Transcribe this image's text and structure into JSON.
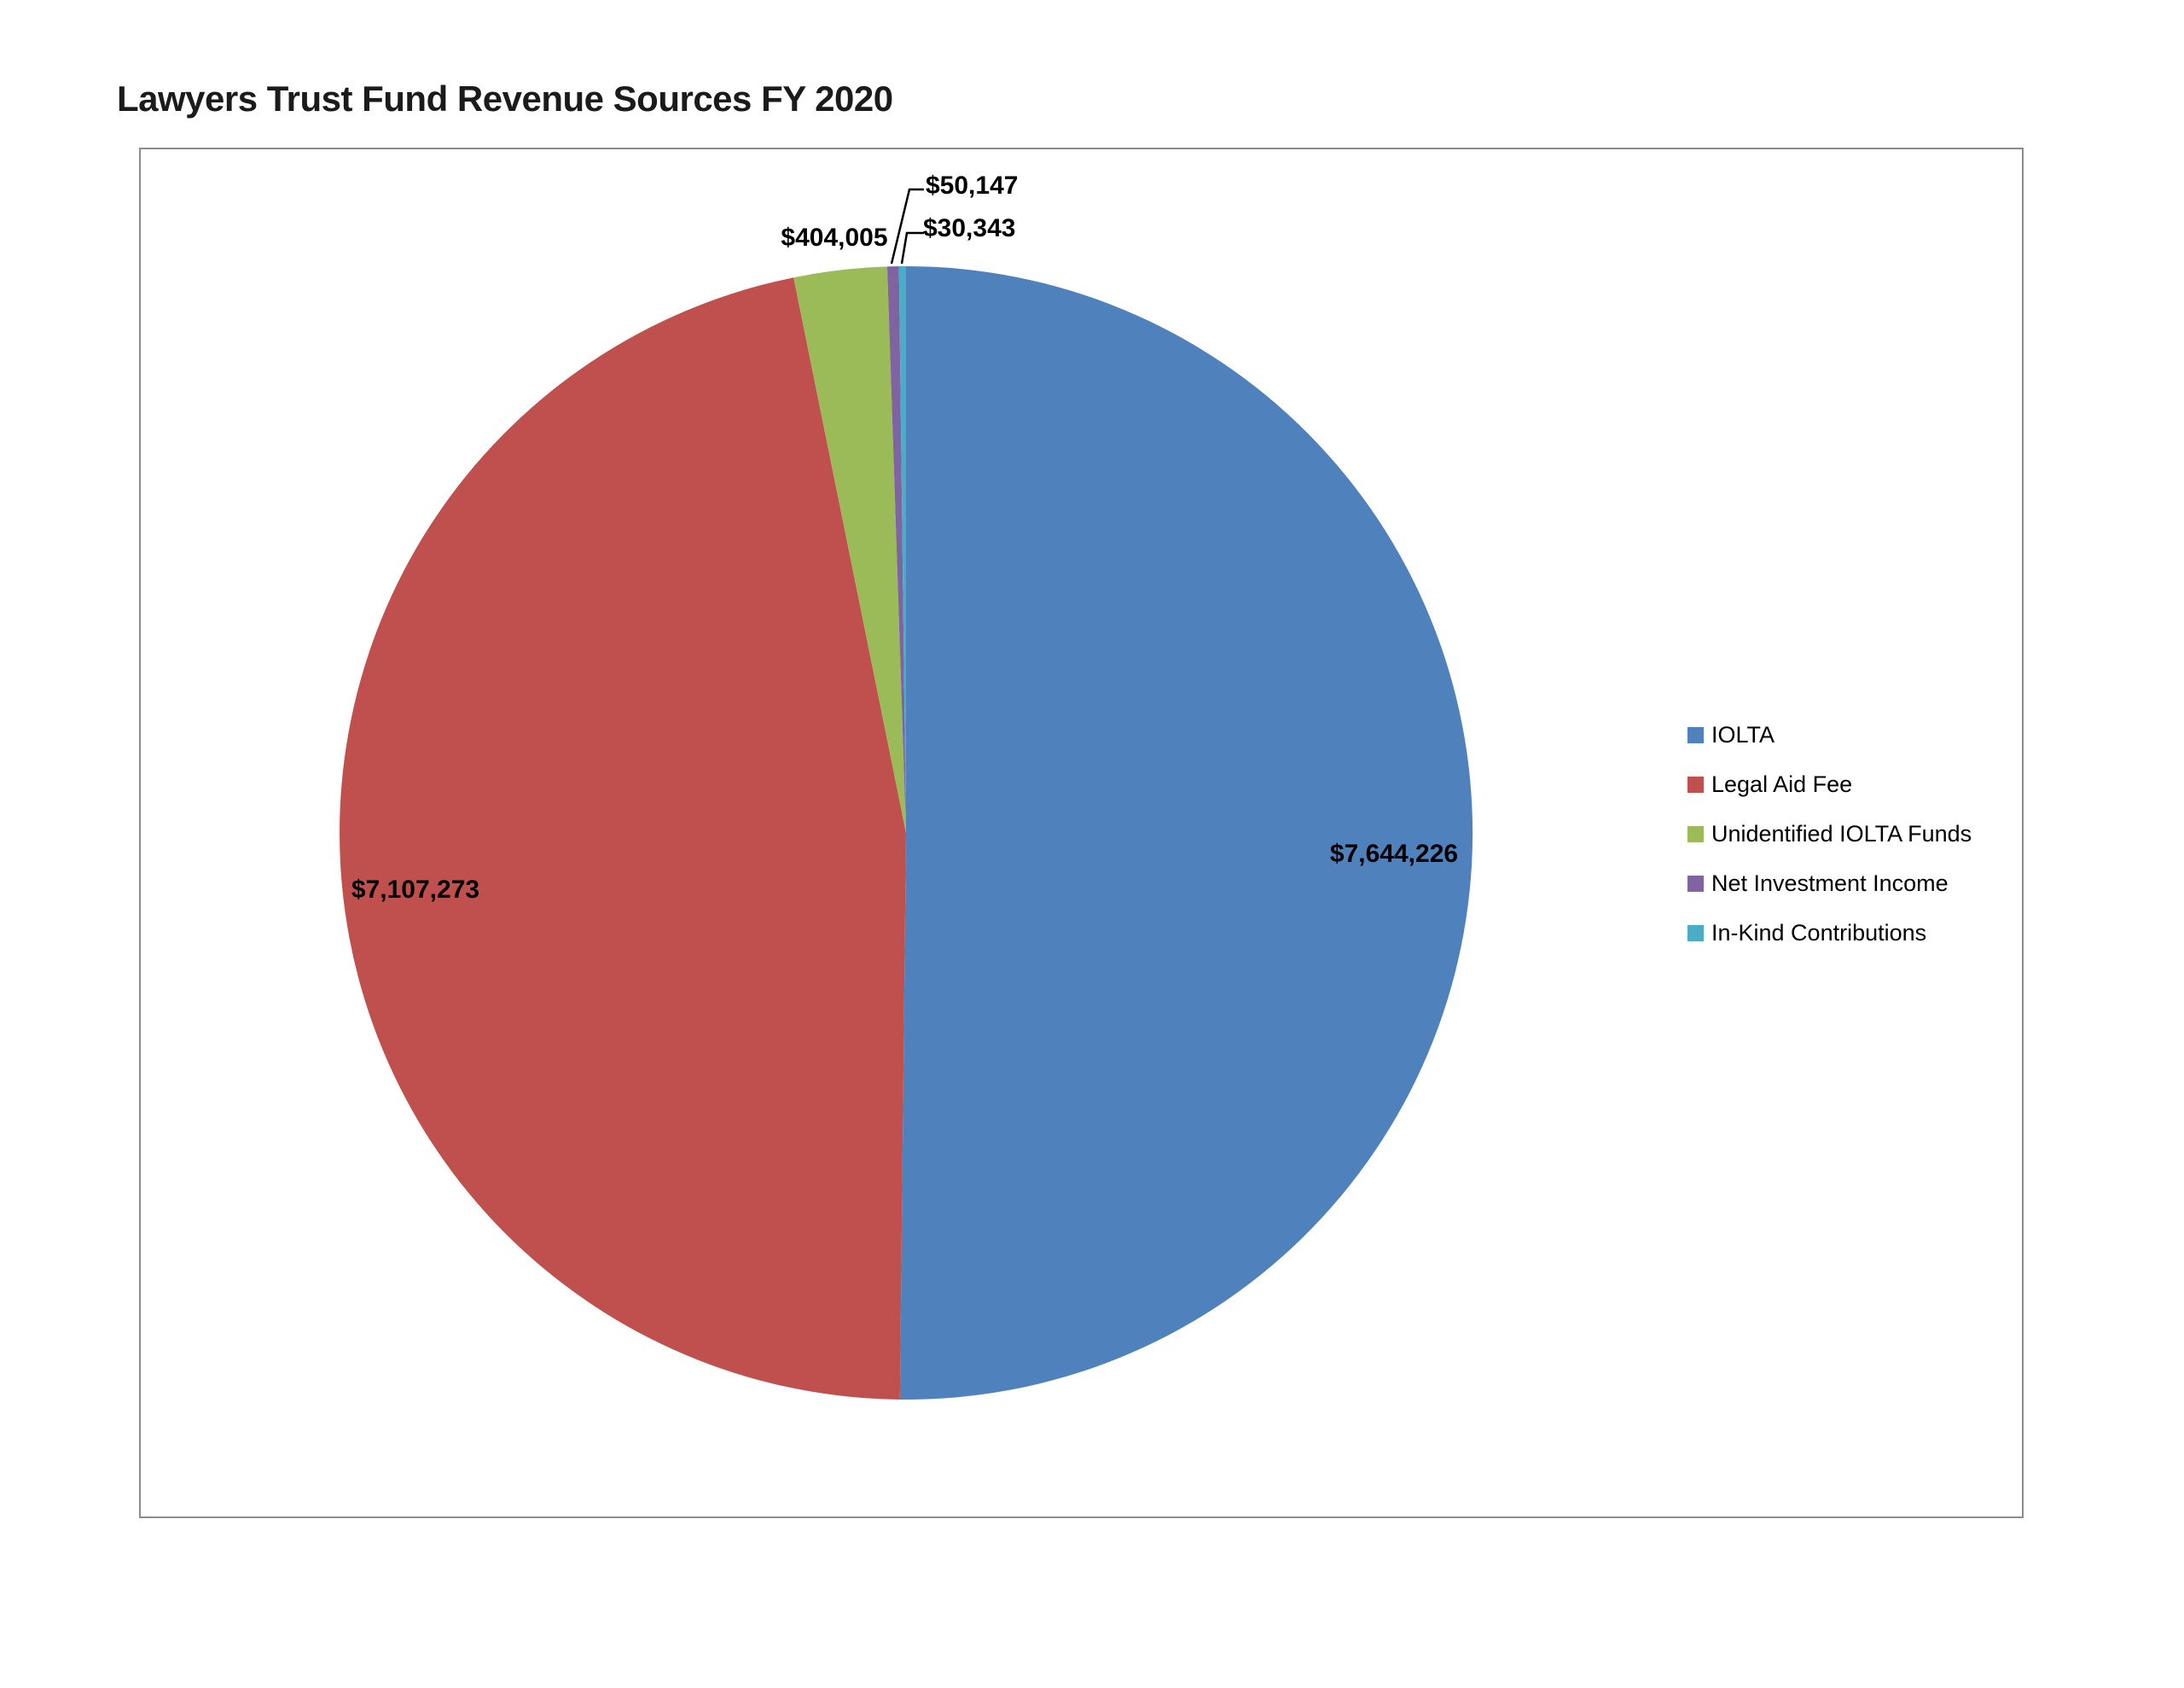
{
  "chart_data": {
    "type": "pie",
    "title": "Lawyers Trust Fund Revenue Sources FY 2020",
    "direction": "clockwise",
    "start_angle_deg": 0,
    "legend_position": "right",
    "series": [
      {
        "name": "IOLTA",
        "value": 7644226,
        "label": "$7,644,226",
        "color": "#4F81BD"
      },
      {
        "name": "Legal Aid Fee",
        "value": 7107273,
        "label": "$7,107,273",
        "color": "#C0504D"
      },
      {
        "name": "Unidentified IOLTA Funds",
        "value": 404005,
        "label": "$404,005",
        "color": "#9BBB59"
      },
      {
        "name": "Net Investment Income",
        "value": 50147,
        "label": "$50,147",
        "color": "#8064A2"
      },
      {
        "name": "In-Kind Contributions",
        "value": 30343,
        "label": "$30,343",
        "color": "#4BACC6"
      }
    ]
  }
}
